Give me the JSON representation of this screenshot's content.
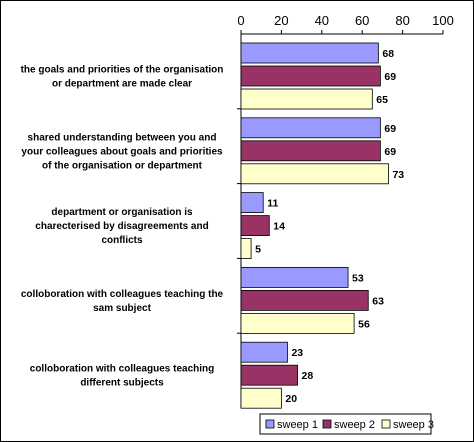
{
  "chart_data": {
    "type": "bar",
    "orientation": "horizontal",
    "categories": [
      [
        "the goals and priorities of the organisation",
        "or department are made clear"
      ],
      [
        "shared understanding between you and",
        "your colleagues about goals and priorities",
        "of the organisation or department"
      ],
      [
        "department or organisation is",
        "charecterised by disagreements and",
        "conflicts"
      ],
      [
        "colloboration with colleagues teaching the",
        "sam subject"
      ],
      [
        "colloboration with colleagues teaching",
        "different subjects"
      ]
    ],
    "series": [
      {
        "name": "sweep 1",
        "color": "#9999ff",
        "values": [
          68,
          69,
          11,
          53,
          23
        ]
      },
      {
        "name": "sweep 2",
        "color": "#993366",
        "values": [
          69,
          69,
          14,
          63,
          28
        ]
      },
      {
        "name": "sweep 3",
        "color": "#ffffcc",
        "values": [
          65,
          73,
          5,
          56,
          20
        ]
      }
    ],
    "x_ticks": [
      "0",
      "20",
      "40",
      "60",
      "80",
      "100"
    ],
    "xlim": [
      0,
      100
    ],
    "axis_position": "top",
    "legend_position": "bottom-right",
    "data_labels": true,
    "grid": false
  }
}
